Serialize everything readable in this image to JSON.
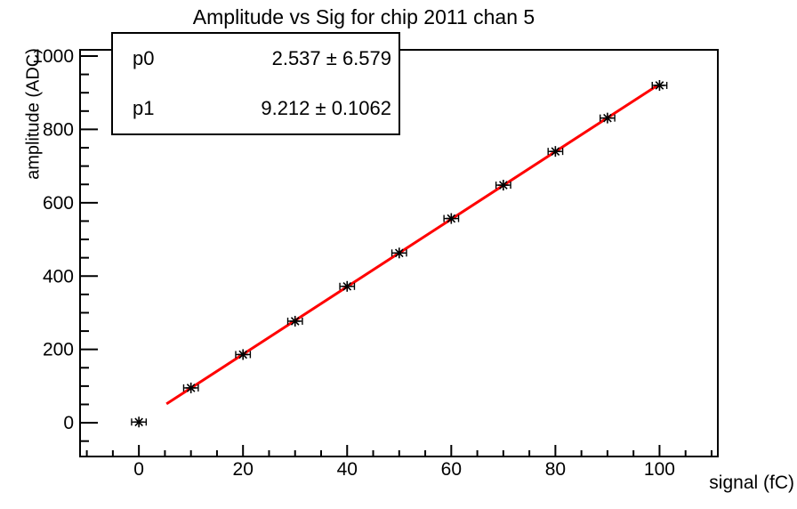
{
  "chart_data": {
    "type": "scatter",
    "title": "Amplitude vs Sig for chip 2011 chan 5",
    "xlabel": "signal (fC)",
    "ylabel": "amplitude (ADC)",
    "xlim": [
      -11.3,
      111.2
    ],
    "ylim": [
      -92,
      1017
    ],
    "xticks": [
      0,
      20,
      40,
      60,
      80,
      100
    ],
    "yticks": [
      0,
      200,
      400,
      600,
      800,
      1000
    ],
    "xminor_step": 5,
    "yminor_step": 50,
    "grid": false,
    "legend": "none",
    "series": [
      {
        "name": "amplitude-vs-signal",
        "marker": "asterisk",
        "color": "#000000",
        "x": [
          0,
          10,
          20,
          30,
          40,
          50,
          60,
          70,
          80,
          90,
          100
        ],
        "y": [
          2,
          95,
          186,
          277,
          372,
          463,
          557,
          648,
          740,
          831,
          920
        ],
        "xerr": 1.4
      }
    ],
    "fit": {
      "type": "linear",
      "p0": 2.537,
      "p1": 9.212,
      "x_start": 5.3,
      "x_end": 99.6,
      "color": "#ff0000"
    }
  },
  "stats": {
    "rows": [
      {
        "name": "p0",
        "value": "2.537 ± 6.579"
      },
      {
        "name": "p1",
        "value": "9.212 ± 0.1062"
      }
    ]
  }
}
